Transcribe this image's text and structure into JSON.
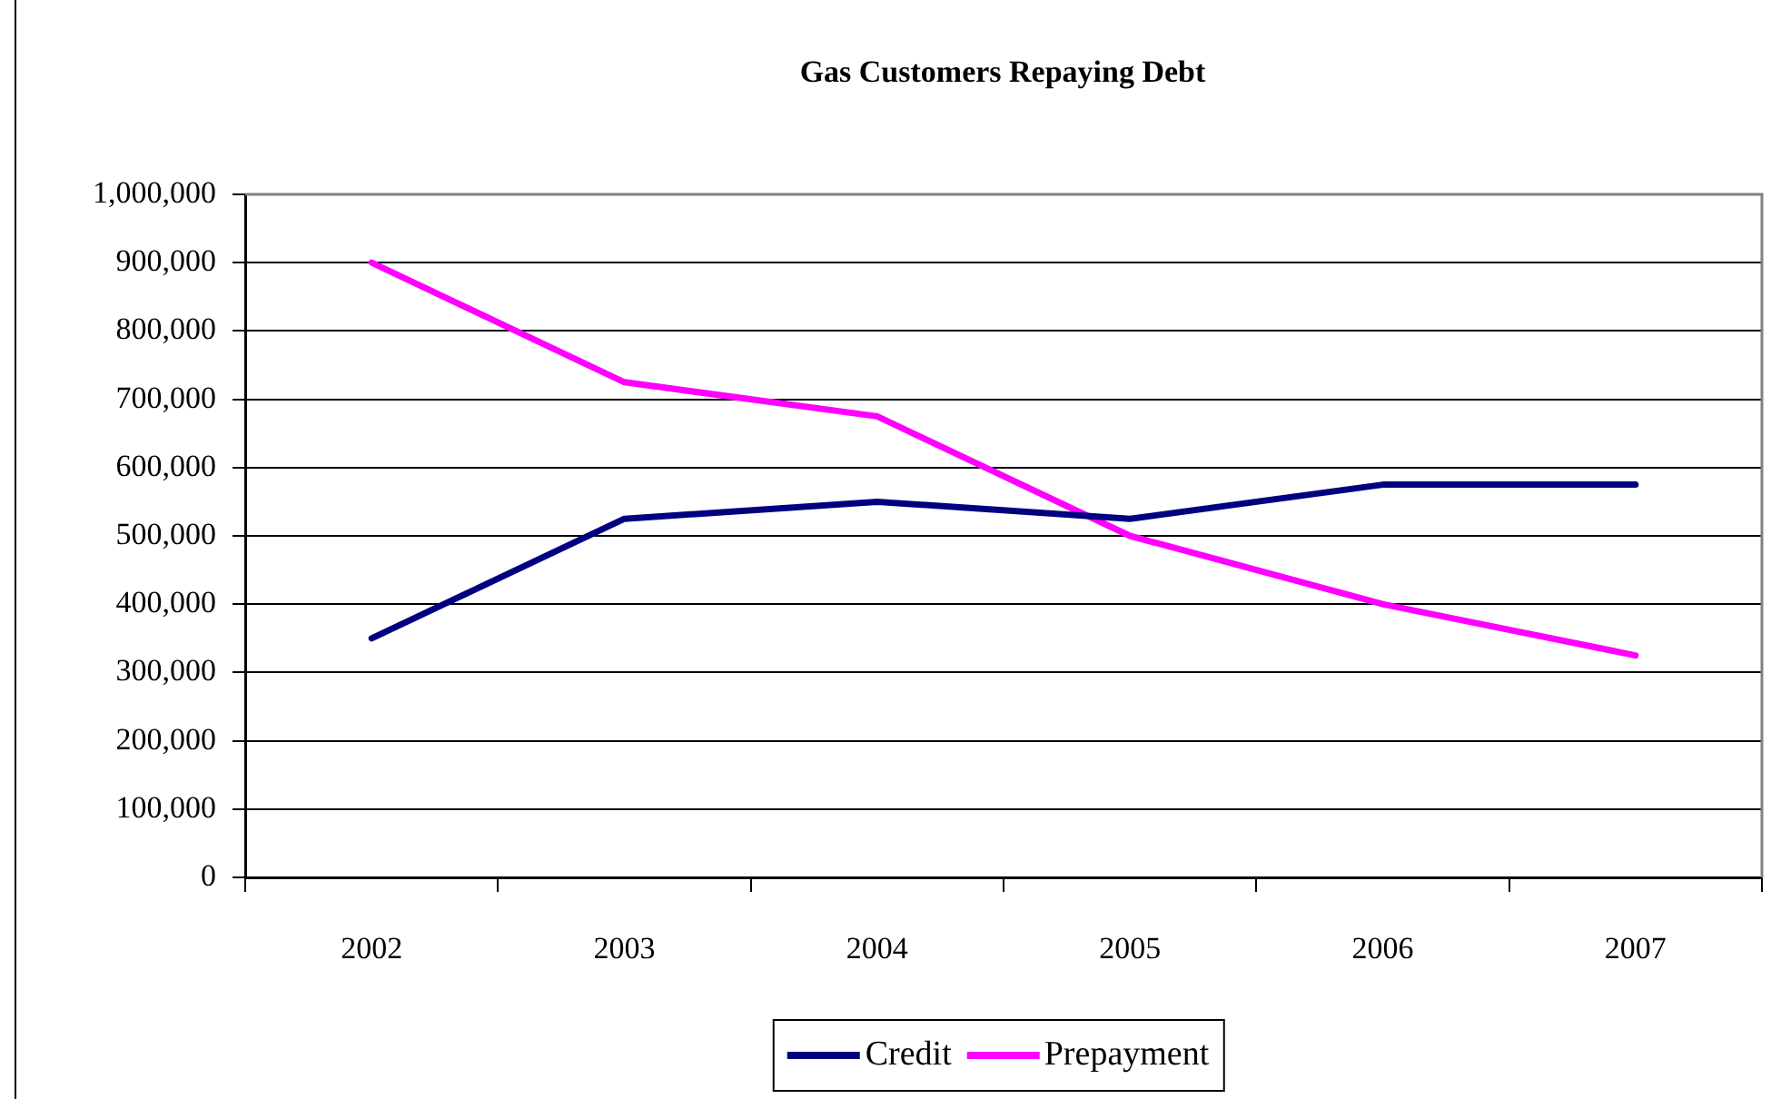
{
  "chart_data": {
    "type": "line",
    "title": "Gas Customers Repaying Debt",
    "categories": [
      "2002",
      "2003",
      "2004",
      "2005",
      "2006",
      "2007"
    ],
    "series": [
      {
        "name": "Credit",
        "color": "#000080",
        "values": [
          350000,
          525000,
          550000,
          525000,
          575000,
          575000
        ]
      },
      {
        "name": "Prepayment",
        "color": "#ff00ff",
        "values": [
          900000,
          725000,
          675000,
          500000,
          400000,
          325000
        ]
      }
    ],
    "ylim": [
      0,
      1000000
    ],
    "yticks": [
      0,
      {
        "value": 100000,
        "label": "100,000"
      },
      {
        "value": 200000,
        "label": "200,000"
      },
      {
        "value": 300000,
        "label": "300,000"
      },
      {
        "value": 400000,
        "label": "400,000"
      },
      {
        "value": 500000,
        "label": "500,000"
      },
      {
        "value": 600000,
        "label": "600,000"
      },
      {
        "value": 700000,
        "label": "700,000"
      },
      {
        "value": 800000,
        "label": "800,000"
      },
      {
        "value": 900000,
        "label": "900,000"
      },
      {
        "value": 1000000,
        "label": "1,000,000"
      }
    ],
    "grid": "y",
    "legend": "bottom",
    "marker": "none",
    "line_style": "solid"
  }
}
